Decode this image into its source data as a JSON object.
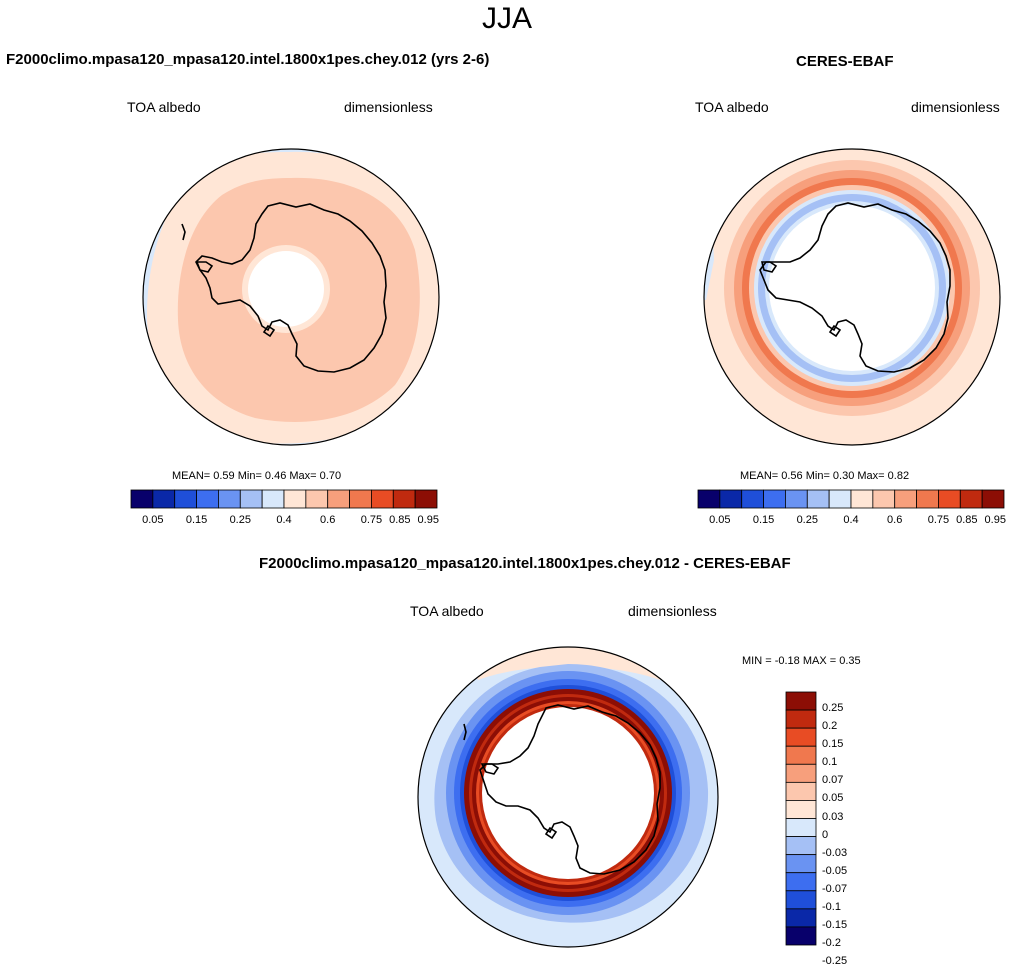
{
  "season": "JJA",
  "palette": {
    "abs_colors": [
      "#08006b",
      "#0a28a8",
      "#1f4fd9",
      "#3d6ef0",
      "#6a93f2",
      "#a5c0f5",
      "#d8e8fb",
      "#ffe6d6",
      "#fcc7ae",
      "#f79f7c",
      "#f0784e",
      "#e84c24",
      "#c02a0f",
      "#8c0e05"
    ],
    "diff_colors": [
      "#08006b",
      "#0a28a8",
      "#1f4fd9",
      "#3d6ef0",
      "#6a93f2",
      "#a5c0f5",
      "#d8e8fb",
      "#ffe6d6",
      "#fcc7ae",
      "#f79f7c",
      "#f0784e",
      "#e84c24",
      "#c02a0f",
      "#8c0e05"
    ],
    "coast_color": "#000000"
  },
  "panel_model": {
    "title": "F2000climo.mpasa120_mpasa120.intel.1800x1pes.chey.012 (yrs 2-6)",
    "variable": "TOA albedo",
    "units": "dimensionless",
    "stats": "MEAN=   0.59  Min=   0.46  Max=   0.70"
  },
  "panel_obs": {
    "title": "CERES-EBAF",
    "variable": "TOA albedo",
    "units": "dimensionless",
    "stats": "MEAN=   0.56  Min=   0.30  Max=   0.82"
  },
  "panel_diff": {
    "title": "F2000climo.mpasa120_mpasa120.intel.1800x1pes.chey.012 - CERES-EBAF",
    "variable": "TOA albedo",
    "units": "dimensionless",
    "minmax": "MIN =  -0.18 MAX =   0.35"
  },
  "abs_colorbar_labels": [
    "0.05",
    "0.15",
    "0.25",
    "0.4",
    "0.6",
    "0.75",
    "0.85",
    "0.95"
  ],
  "diff_colorbar_labels": [
    "0.25",
    "0.2",
    "0.15",
    "0.1",
    "0.07",
    "0.05",
    "0.03",
    "0",
    "-0.03",
    "-0.05",
    "-0.07",
    "-0.1",
    "-0.15",
    "-0.2",
    "-0.25"
  ]
}
